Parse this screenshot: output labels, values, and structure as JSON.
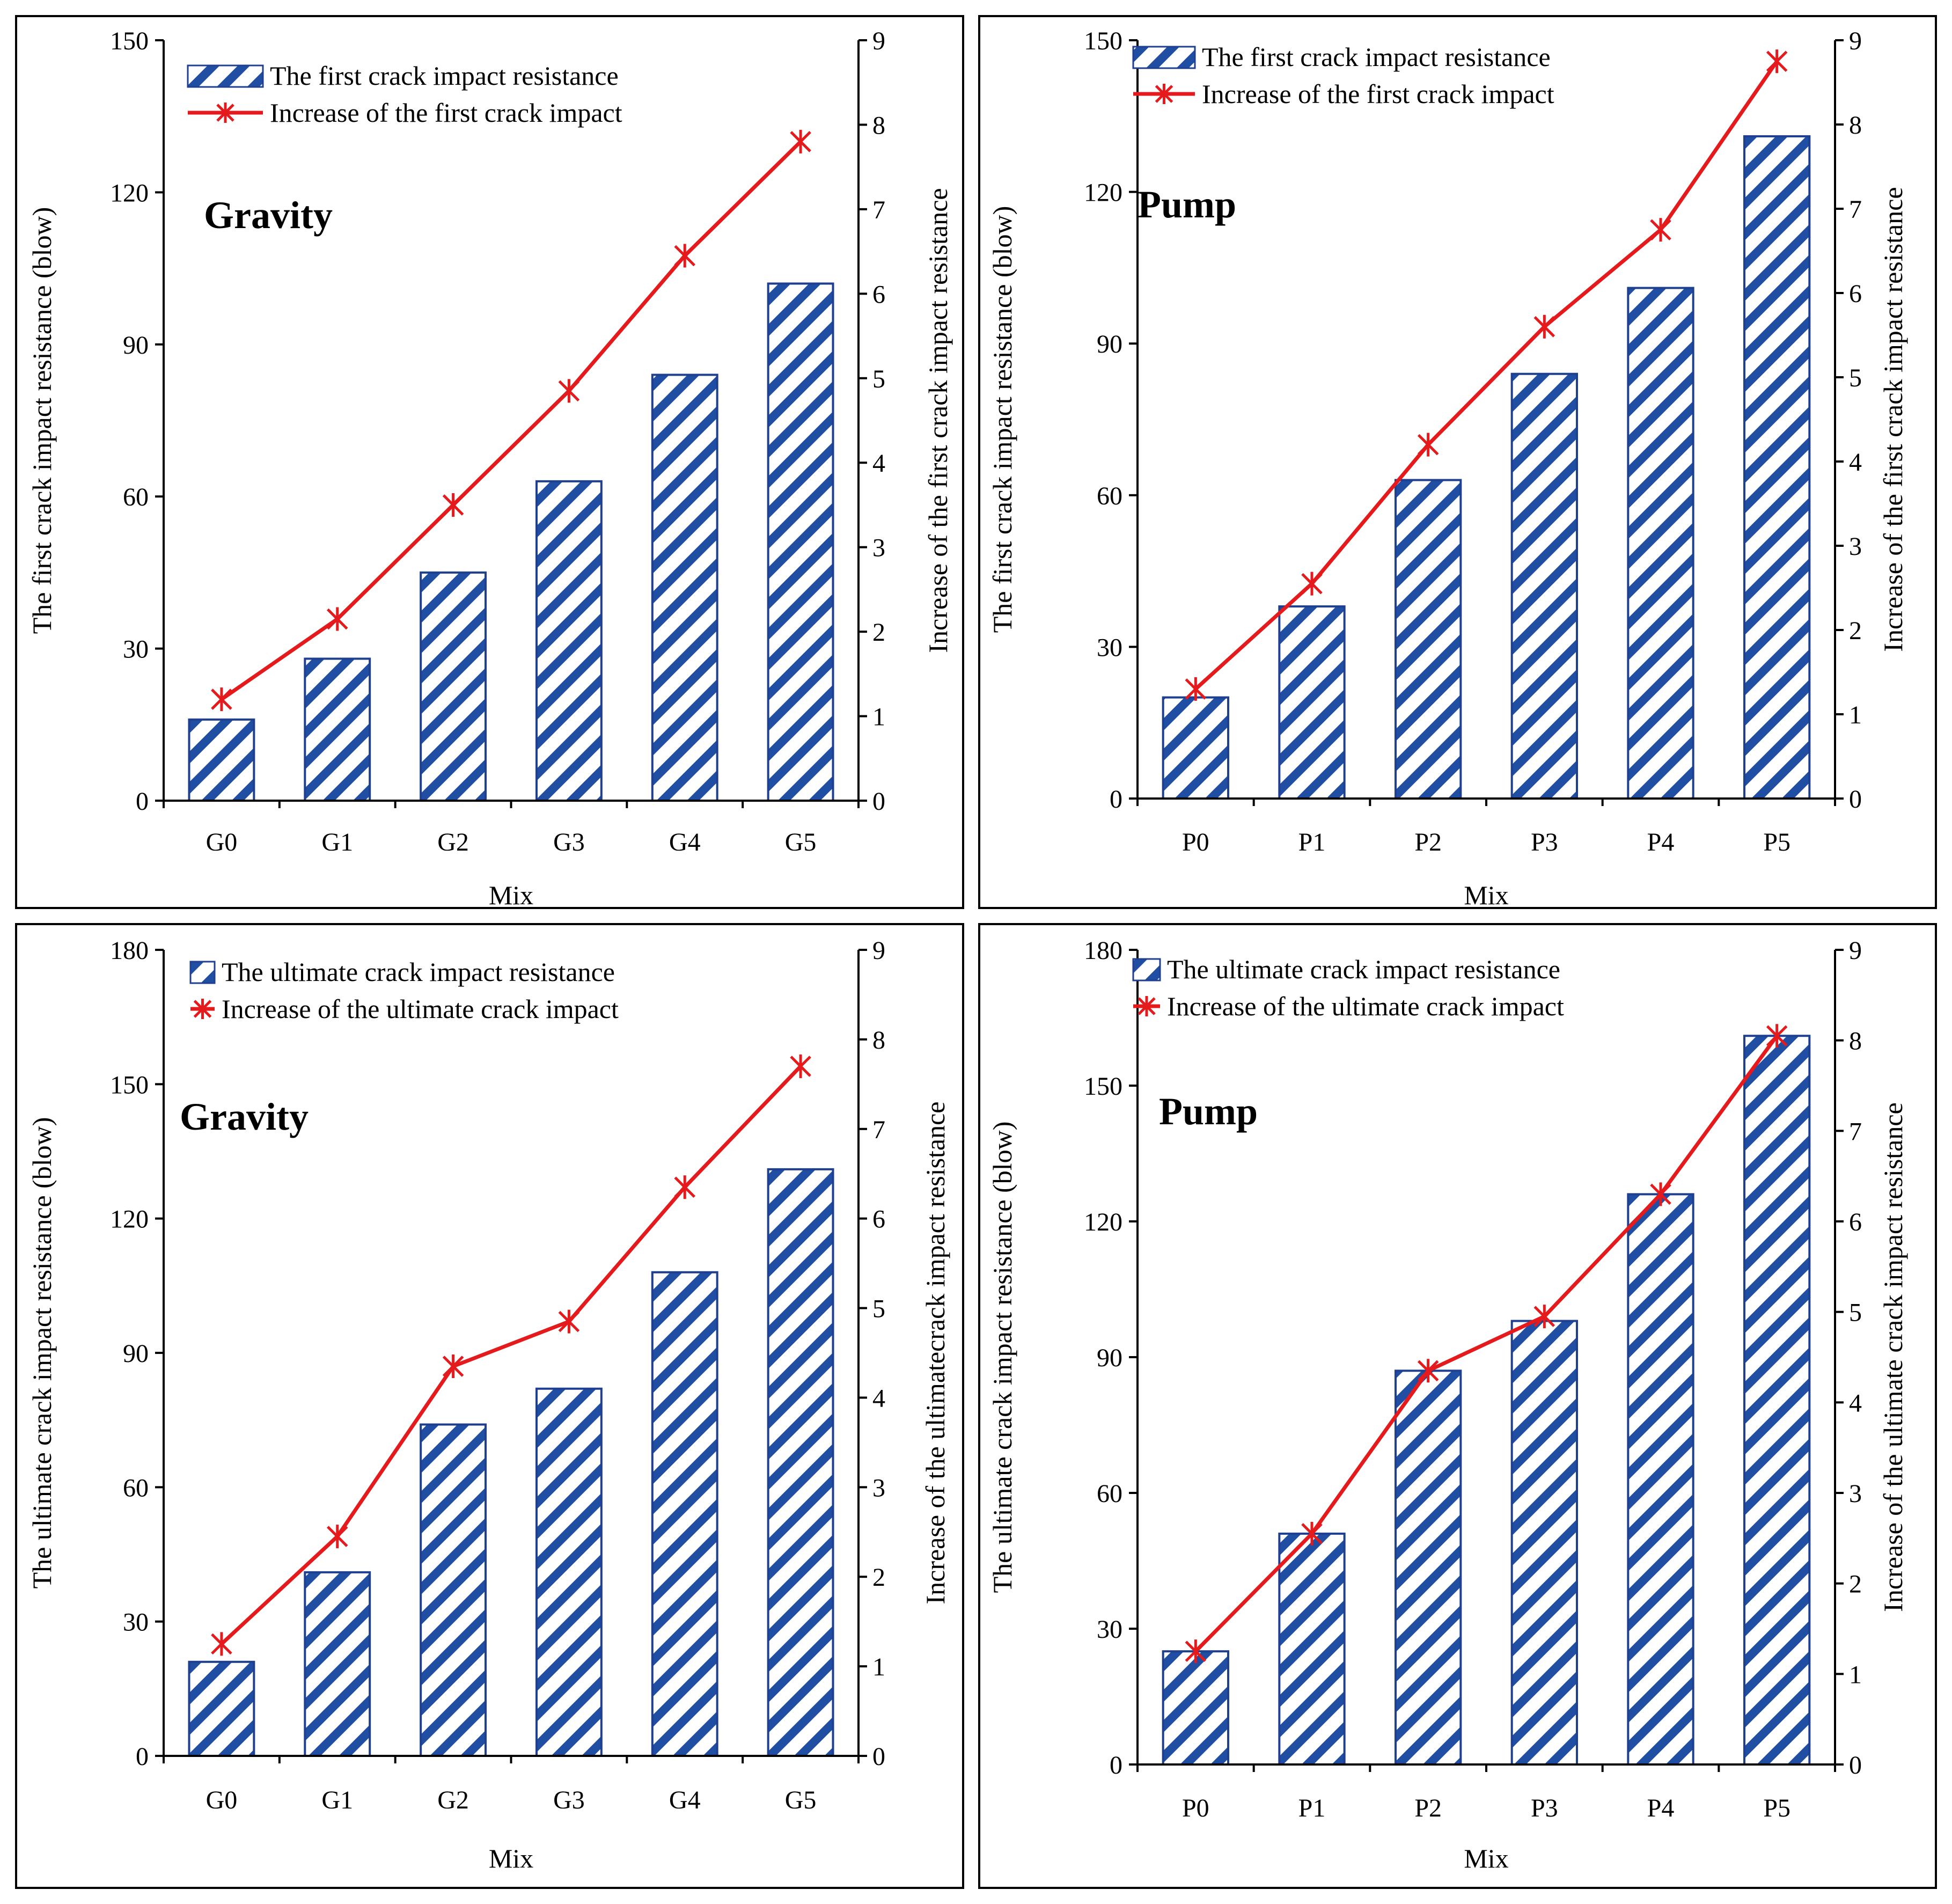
{
  "colors": {
    "bar_stroke": "#1f3f8f",
    "bar_hatch": "#1f4ea3",
    "line": "#e41a1c",
    "axis": "#000000"
  },
  "chart_data": [
    {
      "type": "bar+line",
      "panel_label": "Gravity",
      "xlabel": "Mix",
      "ylabel": "The first crack impact resistance (blow)",
      "y2label": "Increase of the first crack impact resistance",
      "categories": [
        "G0",
        "G1",
        "G2",
        "G3",
        "G4",
        "G5"
      ],
      "ylim": [
        0,
        150
      ],
      "yticks": [
        0,
        30,
        60,
        90,
        120,
        150
      ],
      "y2lim": [
        0,
        9
      ],
      "y2ticks": [
        0,
        1,
        2,
        3,
        4,
        5,
        6,
        7,
        8,
        9
      ],
      "series": [
        {
          "name": "The first crack impact resistance",
          "kind": "bar",
          "axis": "left",
          "values": [
            16,
            28,
            45,
            63,
            84,
            102
          ]
        },
        {
          "name": "Increase of the first crack impact",
          "kind": "line",
          "axis": "right",
          "values": [
            1.2,
            2.15,
            3.5,
            4.85,
            6.45,
            7.8
          ]
        }
      ],
      "legend": "top-left"
    },
    {
      "type": "bar+line",
      "panel_label": "Pump",
      "xlabel": "Mix",
      "ylabel": "The first crack impact resistance (blow)",
      "y2label": "Increase of the first crack impact resistance",
      "categories": [
        "P0",
        "P1",
        "P2",
        "P3",
        "P4",
        "P5"
      ],
      "ylim": [
        0,
        150
      ],
      "yticks": [
        0,
        30,
        60,
        90,
        120,
        150
      ],
      "y2lim": [
        0,
        9
      ],
      "y2ticks": [
        0,
        1,
        2,
        3,
        4,
        5,
        6,
        7,
        8,
        9
      ],
      "series": [
        {
          "name": "The first crack impact resistance",
          "kind": "bar",
          "axis": "left",
          "values": [
            20,
            38,
            63,
            84,
            101,
            131
          ]
        },
        {
          "name": "Increase of the first crack impact",
          "kind": "line",
          "axis": "right",
          "values": [
            1.3,
            2.55,
            4.2,
            5.6,
            6.75,
            8.75
          ]
        }
      ],
      "legend": "top-left"
    },
    {
      "type": "bar+line",
      "panel_label": "Gravity",
      "xlabel": "Mix",
      "ylabel": "The ultimate crack impact resistance (blow)",
      "y2label": "Increase of the ultimatecrack impact resistance",
      "categories": [
        "G0",
        "G1",
        "G2",
        "G3",
        "G4",
        "G5"
      ],
      "ylim": [
        0,
        180
      ],
      "yticks": [
        0,
        30,
        60,
        90,
        120,
        150,
        180
      ],
      "y2lim": [
        0,
        9
      ],
      "y2ticks": [
        0,
        1,
        2,
        3,
        4,
        5,
        6,
        7,
        8,
        9
      ],
      "series": [
        {
          "name": "The ultimate crack impact resistance",
          "kind": "bar",
          "axis": "left",
          "values": [
            21,
            41,
            74,
            82,
            108,
            131
          ]
        },
        {
          "name": "Increase of the ultimate crack impact",
          "kind": "line",
          "axis": "right",
          "values": [
            1.25,
            2.45,
            4.35,
            4.85,
            6.35,
            7.7
          ]
        }
      ],
      "legend": "top-left"
    },
    {
      "type": "bar+line",
      "panel_label": "Pump",
      "xlabel": "Mix",
      "ylabel": "The ultimate crack impact resistance (blow)",
      "y2label": "Increase of the ultimate crack impact resistance",
      "categories": [
        "P0",
        "P1",
        "P2",
        "P3",
        "P4",
        "P5"
      ],
      "ylim": [
        0,
        180
      ],
      "yticks": [
        0,
        30,
        60,
        90,
        120,
        150,
        180
      ],
      "y2lim": [
        0,
        9
      ],
      "y2ticks": [
        0,
        1,
        2,
        3,
        4,
        5,
        6,
        7,
        8,
        9
      ],
      "series": [
        {
          "name": "The ultimate crack impact resistance",
          "kind": "bar",
          "axis": "left",
          "values": [
            25,
            51,
            87,
            98,
            126,
            161
          ]
        },
        {
          "name": "Increase of the ultimate crack impact",
          "kind": "line",
          "axis": "right",
          "values": [
            1.25,
            2.55,
            4.35,
            4.95,
            6.3,
            8.05
          ]
        }
      ],
      "legend": "top-left"
    }
  ]
}
